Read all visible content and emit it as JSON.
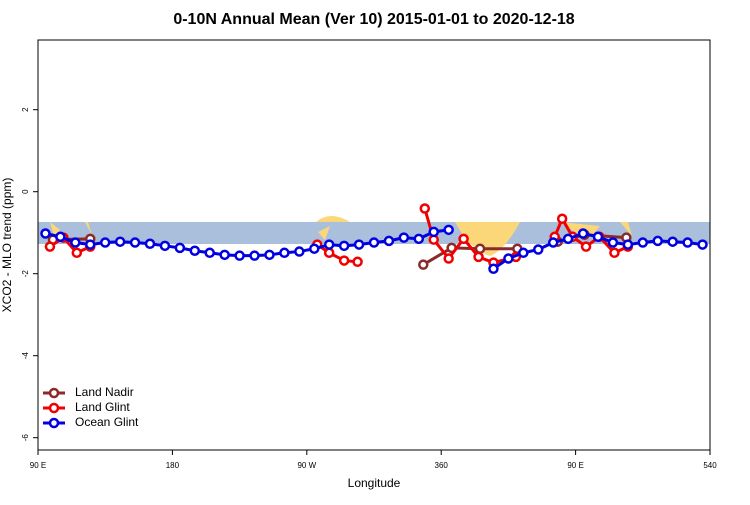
{
  "chart_data": {
    "type": "line",
    "title": "0-10N Annual Mean (Ver 10)   2015-01-01 to 2020-12-18",
    "x_label": "Longitude",
    "y_label": "XCO2 - MLO trend (ppm)",
    "xlim": [
      90,
      540
    ],
    "ylim": [
      -6.3,
      3.7
    ],
    "xticks": [
      {
        "value": 90,
        "label": "90 E"
      },
      180,
      {
        "value": 270,
        "label": "90 W"
      },
      360,
      {
        "value": 450,
        "label": "90 E"
      },
      540
    ],
    "yticks": [
      -6,
      -4,
      -2,
      0,
      2
    ],
    "legend": "bottom-left",
    "series": [
      {
        "name": "Land Nadir",
        "color": "#8b2a2a",
        "x": [
          100,
          125,
          240,
          348,
          367,
          386,
          411,
          425,
          438,
          456,
          484
        ],
        "values": [
          -1.17,
          -1.15,
          null,
          -1.78,
          -1.37,
          -1.39,
          -1.39,
          null,
          -1.22,
          -1.05,
          -1.12
        ]
      },
      {
        "name": "Land Glint",
        "color": "#f00000",
        "x": [
          98,
          107,
          116,
          125,
          200,
          277,
          285,
          295,
          304,
          330,
          349,
          355,
          365,
          375,
          385,
          395,
          410,
          425,
          436,
          441,
          448,
          457,
          466,
          476,
          485
        ],
        "values": [
          -1.34,
          -1.12,
          -1.49,
          -1.34,
          null,
          -1.29,
          -1.49,
          -1.68,
          -1.71,
          null,
          -0.41,
          -1.17,
          -1.63,
          -1.15,
          -1.59,
          -1.73,
          -1.59,
          null,
          -1.1,
          -0.66,
          -1.1,
          -1.34,
          -1.1,
          -1.49,
          -1.34
        ]
      },
      {
        "name": "Ocean Glint",
        "color": "#0000e0",
        "x": [
          95,
          105,
          115,
          125,
          135,
          145,
          155,
          165,
          175,
          185,
          195,
          205,
          215,
          225,
          235,
          245,
          255,
          265,
          275,
          285,
          295,
          305,
          315,
          325,
          335,
          345,
          355,
          365,
          380,
          395,
          405,
          415,
          425,
          435,
          445,
          455,
          465,
          475,
          485,
          495,
          505,
          515,
          525,
          535
        ],
        "values": [
          -1.02,
          -1.1,
          -1.24,
          -1.29,
          -1.24,
          -1.22,
          -1.24,
          -1.27,
          -1.32,
          -1.37,
          -1.44,
          -1.49,
          -1.54,
          -1.56,
          -1.56,
          -1.54,
          -1.49,
          -1.46,
          -1.39,
          -1.29,
          -1.32,
          -1.29,
          -1.24,
          -1.2,
          -1.12,
          -1.15,
          -0.98,
          -0.93,
          null,
          -1.88,
          -1.63,
          -1.49,
          -1.41,
          -1.24,
          -1.15,
          -1.02,
          -1.1,
          -1.24,
          -1.29,
          -1.24,
          -1.2,
          -1.22,
          -1.24,
          -1.29
        ]
      }
    ]
  }
}
